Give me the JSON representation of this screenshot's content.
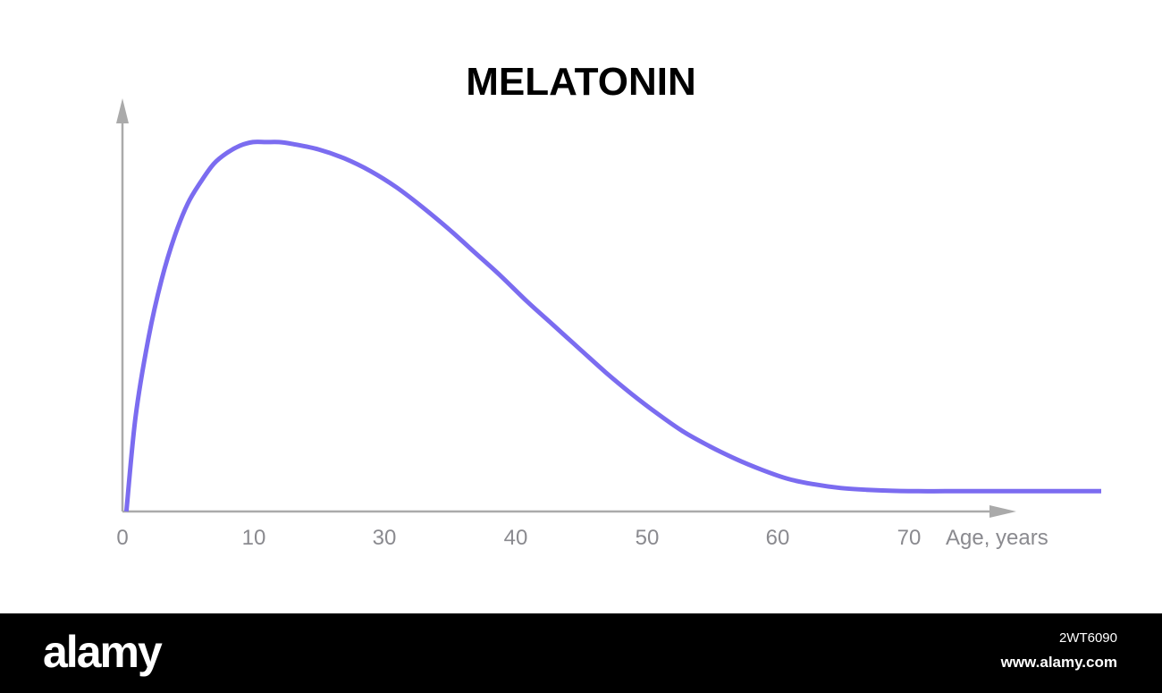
{
  "chart_data": {
    "type": "line",
    "title": "MELATONIN",
    "xlabel": "Age, years",
    "ylabel": "",
    "x_ticks": [
      0,
      10,
      30,
      40,
      50,
      60,
      70
    ],
    "tick_labels": [
      "0",
      "10",
      "30",
      "40",
      "50",
      "60",
      "70"
    ],
    "xlim": [
      0,
      75
    ],
    "ylim": [
      0,
      1.12
    ],
    "grid": false,
    "series": [
      {
        "color": "#7b6cf0",
        "x": [
          0.3,
          1,
          2,
          3,
          4,
          5,
          6,
          7,
          8,
          9,
          10,
          11,
          12,
          13,
          15,
          17,
          19,
          21,
          23,
          25,
          27,
          29,
          31,
          33,
          35,
          37,
          39,
          41,
          43,
          45,
          47,
          49,
          51,
          53,
          55,
          57,
          59,
          61,
          63,
          66,
          70,
          75
        ],
        "y": [
          0.0,
          0.26,
          0.48,
          0.64,
          0.76,
          0.85,
          0.91,
          0.96,
          0.99,
          1.01,
          1.02,
          1.02,
          1.02,
          1.015,
          1.0,
          0.975,
          0.94,
          0.895,
          0.84,
          0.78,
          0.715,
          0.65,
          0.58,
          0.515,
          0.45,
          0.385,
          0.325,
          0.27,
          0.22,
          0.18,
          0.145,
          0.115,
          0.09,
          0.075,
          0.065,
          0.06,
          0.057,
          0.056,
          0.056,
          0.056,
          0.056,
          0.056
        ]
      }
    ]
  },
  "footer": {
    "logo": "alamy",
    "image_id": "2WT6090",
    "site": "www.alamy.com"
  },
  "colors": {
    "curve": "#7b6cf0",
    "axis": "#aaaaaa",
    "tick_text": "#8a8a8f",
    "footer_bg": "#000000"
  }
}
